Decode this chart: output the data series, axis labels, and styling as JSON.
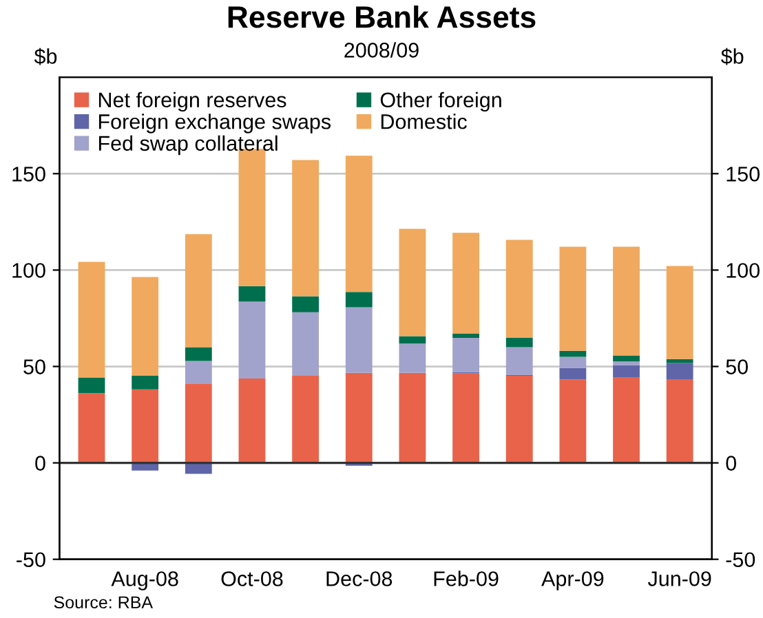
{
  "chart_data": {
    "type": "bar",
    "title": "Reserve Bank Assets",
    "subtitle": "2008/09",
    "ylabel": "$b",
    "y2label": "$b",
    "categories": [
      null,
      "Aug-08",
      null,
      "Oct-08",
      null,
      "Dec-08",
      null,
      "Feb-09",
      null,
      "Apr-09",
      null,
      "Jun-09"
    ],
    "stacked": true,
    "series": [
      {
        "name": "Net foreign reserves",
        "color": "#e8634a",
        "values": [
          36.2,
          38.1,
          41.2,
          43.8,
          45.2,
          46.7,
          46.7,
          46.4,
          45.2,
          43.3,
          44.5,
          43.1
        ]
      },
      {
        "name": "Foreign exchange swaps",
        "color": "#5f65a8",
        "values": [
          0,
          -4.0,
          -5.7,
          0,
          0,
          -1.5,
          0,
          0.7,
          0.5,
          6.0,
          6.2,
          8.8
        ]
      },
      {
        "name": "Fed swap collateral",
        "color": "#a2a3cc",
        "values": [
          0,
          0,
          11.7,
          39.8,
          32.9,
          34.0,
          15.2,
          17.7,
          14.3,
          5.7,
          1.9,
          0
        ]
      },
      {
        "name": "Other foreign",
        "color": "#006f4e",
        "values": [
          8.1,
          7.1,
          7.1,
          8.1,
          8.3,
          7.9,
          3.8,
          2.3,
          5.0,
          3.1,
          3.1,
          1.9
        ]
      },
      {
        "name": "Domestic",
        "color": "#f0a95e",
        "values": [
          60.0,
          51.2,
          58.6,
          71.2,
          70.7,
          70.7,
          55.7,
          52.2,
          50.7,
          54.0,
          56.4,
          48.3
        ]
      }
    ],
    "ylim": [
      -50,
      200
    ],
    "yticks": [
      -50,
      0,
      50,
      100,
      150
    ],
    "y2lim": [
      -50,
      200
    ],
    "y2ticks": [
      -50,
      0,
      50,
      100,
      150
    ],
    "ref_lines": [
      {
        "axis": "y",
        "value": 0,
        "color": "#333333"
      }
    ],
    "grid": "y",
    "legend": "top left",
    "annotations": [
      "Source: RBA"
    ]
  }
}
